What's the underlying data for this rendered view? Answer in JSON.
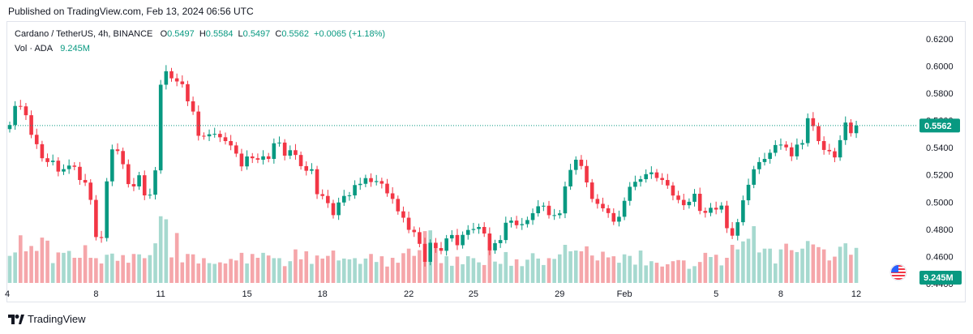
{
  "header": {
    "published": "Published on TradingView.com, Feb 13, 2024 06:56 UTC"
  },
  "legend": {
    "symbol": "Cardano / TetherUS, 4h, BINANCE",
    "o_label": "O",
    "o_value": "0.5497",
    "h_label": "H",
    "h_value": "0.5584",
    "l_label": "L",
    "l_value": "0.5497",
    "c_label": "C",
    "c_value": "0.5562",
    "change": "+0.0065 (+1.18%)",
    "vol_label": "Vol · ADA",
    "vol_value": "9.245M"
  },
  "footer": {
    "brand": "TradingView",
    "logo_icon": "tradingview-logo-icon"
  },
  "colors": {
    "up": "#089981",
    "down": "#f23645",
    "vol_up": "#a6d9cf",
    "vol_down": "#f5a6aa",
    "badge": "#089981"
  },
  "chart_data": {
    "type": "candlestick",
    "symbol": "ADA/USDT",
    "interval": "4h",
    "ylim": [
      0.44,
      0.627
    ],
    "y_ticks": [
      "0.6200",
      "0.6000",
      "0.5800",
      "0.5600",
      "0.5400",
      "0.5200",
      "0.5000",
      "0.4800",
      "0.4600",
      "0.4400"
    ],
    "x_ticks": [
      "4",
      "8",
      "11",
      "15",
      "18",
      "22",
      "25",
      "29",
      "Feb",
      "5",
      "8",
      "12"
    ],
    "last_price": "0.5562",
    "last_price_value": 0.5562,
    "volume_label": "9.245M",
    "closes": [
      0.5566,
      0.5706,
      0.5703,
      0.5638,
      0.5494,
      0.5425,
      0.5322,
      0.5294,
      0.5304,
      0.5224,
      0.5242,
      0.5268,
      0.5259,
      0.5162,
      0.5143,
      0.5016,
      0.4743,
      0.4736,
      0.5152,
      0.5387,
      0.5375,
      0.5278,
      0.5132,
      0.5115,
      0.5197,
      0.5049,
      0.5054,
      0.5233,
      0.5862,
      0.5961,
      0.5909,
      0.5886,
      0.5866,
      0.574,
      0.5665,
      0.5487,
      0.5483,
      0.5498,
      0.5501,
      0.5476,
      0.5448,
      0.5416,
      0.5356,
      0.5262,
      0.5335,
      0.5322,
      0.5311,
      0.5336,
      0.5317,
      0.5432,
      0.5437,
      0.5341,
      0.5381,
      0.5346,
      0.5264,
      0.523,
      0.5241,
      0.5058,
      0.5045,
      0.4992,
      0.4904,
      0.4997,
      0.5045,
      0.5049,
      0.5125,
      0.5134,
      0.5176,
      0.5147,
      0.5154,
      0.5135,
      0.5064,
      0.5023,
      0.4932,
      0.4885,
      0.4796,
      0.4779,
      0.4693,
      0.4561,
      0.4701,
      0.4662,
      0.4642,
      0.4733,
      0.4758,
      0.4683,
      0.4759,
      0.4795,
      0.4802,
      0.4817,
      0.4769,
      0.4645,
      0.4698,
      0.4721,
      0.4848,
      0.4864,
      0.483,
      0.4838,
      0.4868,
      0.4918,
      0.4969,
      0.4973,
      0.4904,
      0.4904,
      0.4917,
      0.5115,
      0.5236,
      0.5311,
      0.5265,
      0.5144,
      0.5023,
      0.4987,
      0.4954,
      0.4919,
      0.4856,
      0.4892,
      0.5009,
      0.5112,
      0.5149,
      0.5168,
      0.5205,
      0.5218,
      0.5177,
      0.5162,
      0.5122,
      0.5048,
      0.5016,
      0.4977,
      0.5002,
      0.5061,
      0.4935,
      0.4921,
      0.4958,
      0.4945,
      0.4974,
      0.4808,
      0.4753,
      0.4852,
      0.5013,
      0.5127,
      0.5241,
      0.5294,
      0.5317,
      0.5362,
      0.5419,
      0.5422,
      0.5402,
      0.5336,
      0.5422,
      0.5433,
      0.5616,
      0.5558,
      0.5448,
      0.5383,
      0.5373,
      0.5328,
      0.5455,
      0.5584,
      0.5506,
      0.5562
    ],
    "volumes_m": [
      7.1,
      8.0,
      12.5,
      8.3,
      9.7,
      8.4,
      11.9,
      11.1,
      5.2,
      8.0,
      7.9,
      8.4,
      6.6,
      6.6,
      9.9,
      6.6,
      6.5,
      5.1,
      7.4,
      7.7,
      5.8,
      7.3,
      5.3,
      7.6,
      7.5,
      6.5,
      7.3,
      10.4,
      17.5,
      16.7,
      6.7,
      13.1,
      5.4,
      7.6,
      7.5,
      5.1,
      6.5,
      5.2,
      5.0,
      5.4,
      5.1,
      6.3,
      5.9,
      7.9,
      5.1,
      7.6,
      6.6,
      7.9,
      7.2,
      6.5,
      6.5,
      4.4,
      5.7,
      8.8,
      6.2,
      8.3,
      5.0,
      7.2,
      6.4,
      7.1,
      8.5,
      5.9,
      6.4,
      6.2,
      6.5,
      5.0,
      6.4,
      7.6,
      5.5,
      7.0,
      4.3,
      6.6,
      5.3,
      7.8,
      9.0,
      7.1,
      8.6,
      13.6,
      13.8,
      10.5,
      5.2,
      7.0,
      4.5,
      6.9,
      4.9,
      7.0,
      6.5,
      5.4,
      4.7,
      9.5,
      5.6,
      5.0,
      8.1,
      4.5,
      6.2,
      4.4,
      6.1,
      7.8,
      6.4,
      4.7,
      6.5,
      6.3,
      7.5,
      10.0,
      8.3,
      8.5,
      8.3,
      9.6,
      7.2,
      5.9,
      8.2,
      6.7,
      7.0,
      5.3,
      7.5,
      7.1,
      4.8,
      8.5,
      4.6,
      5.7,
      5.3,
      4.3,
      4.9,
      5.7,
      6.0,
      5.9,
      3.7,
      4.4,
      5.5,
      7.9,
      6.8,
      7.4,
      4.6,
      6.6,
      10.0,
      8.8,
      10.9,
      11.6,
      14.9,
      8.0,
      9.0,
      9.0,
      5.1,
      8.8,
      10.3,
      8.6,
      8.1,
      9.0,
      11.0,
      10.1,
      9.4,
      8.8,
      5.9,
      6.9,
      9.5,
      10.4,
      7.4,
      9.2
    ]
  }
}
